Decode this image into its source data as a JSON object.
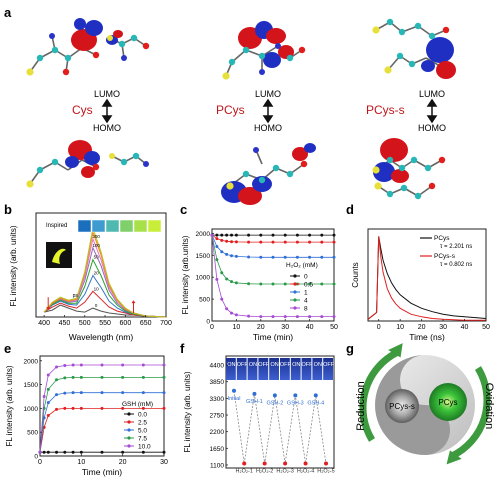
{
  "figure": {
    "panels": {
      "a": "a",
      "b": "b",
      "c": "c",
      "d": "d",
      "e": "e",
      "f": "f",
      "g": "g"
    }
  },
  "panel_a": {
    "columns": [
      {
        "name": "Cys",
        "lumo": "LUMO",
        "homo": "HOMO"
      },
      {
        "name": "PCys",
        "lumo": "LUMO",
        "homo": "HOMO"
      },
      {
        "name": "PCys-s",
        "lumo": "LUMO",
        "homo": "HOMO"
      }
    ],
    "colors": {
      "name": "#c0161b",
      "lobe_red": "#d4141b",
      "lobe_blue": "#1f2fc2",
      "carbon": "#27b7b7",
      "sulfur": "#e8e03a",
      "oxygen": "#e21d1d",
      "nitrogen": "#2a34c9",
      "hydrogen": "#e8e8e8"
    }
  },
  "chart_data": [
    {
      "panel": "b",
      "type": "line",
      "xlabel": "Wavelength (nm)",
      "ylabel": "FL intensity (arb. units)",
      "xticks": [
        "400",
        "450",
        "500",
        "550",
        "600",
        "650",
        "700"
      ],
      "xlim": [
        380,
        700
      ],
      "annotations": [
        "Inspired",
        "0",
        "10",
        "20",
        "50",
        "100",
        "200",
        "300",
        "400",
        "ps"
      ],
      "series": [
        {
          "name": "0",
          "color": "#555555",
          "x": [
            400,
            420,
            440,
            460,
            480,
            500,
            520,
            540,
            560,
            580,
            600,
            620,
            650,
            700
          ],
          "y": [
            0.05,
            0.07,
            0.12,
            0.09,
            0.06,
            0.05,
            0.09,
            0.06,
            0.04,
            0.03,
            0.02,
            0.02,
            0.01,
            0.0
          ]
        },
        {
          "name": "10",
          "color": "#d62728",
          "x": [
            400,
            420,
            440,
            460,
            480,
            500,
            520,
            540,
            560,
            580,
            600,
            620,
            650,
            700
          ],
          "y": [
            0.05,
            0.1,
            0.14,
            0.11,
            0.09,
            0.15,
            0.26,
            0.18,
            0.1,
            0.06,
            0.04,
            0.02,
            0.01,
            0.0
          ]
        },
        {
          "name": "20",
          "color": "#2f77c9",
          "x": [
            400,
            420,
            440,
            460,
            480,
            500,
            520,
            540,
            560,
            580,
            600,
            620,
            650,
            700
          ],
          "y": [
            0.05,
            0.12,
            0.16,
            0.13,
            0.12,
            0.23,
            0.42,
            0.3,
            0.16,
            0.09,
            0.05,
            0.03,
            0.01,
            0.0
          ]
        },
        {
          "name": "50",
          "color": "#2ca02c",
          "x": [
            400,
            420,
            440,
            460,
            480,
            500,
            520,
            540,
            560,
            580,
            600,
            620,
            650,
            700
          ],
          "y": [
            0.05,
            0.13,
            0.17,
            0.14,
            0.14,
            0.31,
            0.58,
            0.42,
            0.22,
            0.12,
            0.06,
            0.03,
            0.01,
            0.0
          ]
        },
        {
          "name": "100",
          "color": "#9467bd",
          "x": [
            400,
            420,
            440,
            460,
            480,
            500,
            520,
            540,
            560,
            580,
            600,
            620,
            650,
            700
          ],
          "y": [
            0.05,
            0.14,
            0.18,
            0.15,
            0.16,
            0.37,
            0.7,
            0.52,
            0.27,
            0.14,
            0.07,
            0.04,
            0.01,
            0.0
          ]
        },
        {
          "name": "200",
          "color": "#e377c2",
          "x": [
            400,
            420,
            440,
            460,
            480,
            500,
            520,
            540,
            560,
            580,
            600,
            620,
            650,
            700
          ],
          "y": [
            0.05,
            0.14,
            0.19,
            0.16,
            0.17,
            0.41,
            0.79,
            0.58,
            0.3,
            0.16,
            0.08,
            0.04,
            0.01,
            0.0
          ]
        },
        {
          "name": "300",
          "color": "#ff7f0e",
          "x": [
            400,
            420,
            440,
            460,
            480,
            500,
            520,
            540,
            560,
            580,
            600,
            620,
            650,
            700
          ],
          "y": [
            0.05,
            0.14,
            0.19,
            0.16,
            0.18,
            0.44,
            0.86,
            0.63,
            0.32,
            0.17,
            0.08,
            0.04,
            0.01,
            0.0
          ]
        },
        {
          "name": "400",
          "color": "#b5c227",
          "x": [
            400,
            420,
            440,
            460,
            480,
            500,
            520,
            540,
            560,
            580,
            600,
            620,
            650,
            700
          ],
          "y": [
            0.05,
            0.15,
            0.2,
            0.17,
            0.19,
            0.46,
            0.9,
            0.66,
            0.34,
            0.18,
            0.09,
            0.04,
            0.01,
            0.0
          ]
        }
      ],
      "inset_swatches": [
        "#1a6fbd",
        "#3d9bd0",
        "#4fb8b0",
        "#7fcf6a",
        "#a8e04a",
        "#c8ee3a"
      ]
    },
    {
      "panel": "c",
      "type": "line",
      "xlabel": "Time (min)",
      "ylabel": "FL intensity (arb.units)",
      "xticks": [
        "0",
        "10",
        "20",
        "30",
        "40",
        "50"
      ],
      "yticks": [
        "0",
        "500",
        "1000",
        "1500",
        "2000"
      ],
      "xlim": [
        0,
        50
      ],
      "ylim": [
        0,
        2100
      ],
      "legend_title": "H₂O₂ (mM)",
      "series": [
        {
          "name": "0",
          "color": "#111111",
          "x": [
            0,
            2,
            4,
            6,
            8,
            10,
            15,
            20,
            25,
            30,
            35,
            40,
            45,
            50
          ],
          "y": [
            1960,
            1960,
            1960,
            1960,
            1960,
            1960,
            1960,
            1960,
            1960,
            1960,
            1960,
            1960,
            1960,
            1960
          ]
        },
        {
          "name": "0.5",
          "color": "#e02020",
          "x": [
            0,
            2,
            4,
            6,
            8,
            10,
            15,
            20,
            25,
            30,
            35,
            40,
            45,
            50
          ],
          "y": [
            1960,
            1880,
            1840,
            1820,
            1810,
            1805,
            1800,
            1800,
            1800,
            1800,
            1800,
            1800,
            1800,
            1800
          ]
        },
        {
          "name": "1",
          "color": "#2f6fd6",
          "x": [
            0,
            2,
            4,
            6,
            8,
            10,
            15,
            20,
            25,
            30,
            35,
            40,
            45,
            50
          ],
          "y": [
            1960,
            1700,
            1580,
            1520,
            1490,
            1475,
            1460,
            1455,
            1455,
            1455,
            1455,
            1455,
            1455,
            1455
          ]
        },
        {
          "name": "4",
          "color": "#2a9a4a",
          "x": [
            0,
            2,
            4,
            6,
            8,
            10,
            15,
            20,
            25,
            30,
            35,
            40,
            45,
            50
          ],
          "y": [
            1960,
            1400,
            1100,
            960,
            900,
            870,
            850,
            845,
            845,
            845,
            845,
            845,
            845,
            845
          ]
        },
        {
          "name": "8",
          "color": "#a64bd4",
          "x": [
            0,
            2,
            4,
            6,
            8,
            10,
            15,
            20,
            25,
            30,
            35,
            40,
            45,
            50
          ],
          "y": [
            1960,
            950,
            500,
            280,
            180,
            140,
            110,
            100,
            100,
            100,
            100,
            100,
            100,
            100
          ]
        }
      ]
    },
    {
      "panel": "d",
      "type": "line",
      "xlabel": "Time (ns)",
      "ylabel": "Counts",
      "xticks": [
        "0",
        "10",
        "20",
        "30",
        "40",
        "50"
      ],
      "xlim": [
        -5,
        50
      ],
      "series": [
        {
          "name": "PCys",
          "color": "#111111",
          "tau": "τ = 2.201 ns",
          "x": [
            -5,
            -1,
            0,
            1,
            2,
            4,
            6,
            8,
            10,
            15,
            20,
            25,
            30,
            35,
            40,
            45,
            50
          ],
          "y": [
            0.02,
            0.1,
            1.0,
            0.85,
            0.72,
            0.56,
            0.45,
            0.37,
            0.31,
            0.21,
            0.15,
            0.11,
            0.08,
            0.06,
            0.05,
            0.04,
            0.03
          ]
        },
        {
          "name": "PCys-s",
          "color": "#e02020",
          "tau": "τ = 0.802 ns",
          "x": [
            -5,
            -1,
            0,
            1,
            2,
            4,
            6,
            8,
            10,
            15,
            20,
            25,
            30,
            35,
            40,
            45,
            50
          ],
          "y": [
            0.02,
            0.1,
            1.0,
            0.75,
            0.58,
            0.38,
            0.27,
            0.2,
            0.15,
            0.08,
            0.05,
            0.03,
            0.02,
            0.015,
            0.01,
            0.01,
            0.01
          ]
        }
      ]
    },
    {
      "panel": "e",
      "type": "line",
      "xlabel": "Time (min)",
      "ylabel": "FL intensity (arb. units)",
      "xticks": [
        "0",
        "10",
        "20",
        "30"
      ],
      "yticks": [
        "0",
        "500",
        "1000",
        "1500",
        "2000"
      ],
      "xlim": [
        0,
        30
      ],
      "ylim": [
        0,
        2100
      ],
      "legend_title": "GSH (mM)",
      "series": [
        {
          "name": "0.0",
          "color": "#111111",
          "x": [
            0,
            1,
            2,
            4,
            6,
            8,
            10,
            15,
            20,
            25,
            30
          ],
          "y": [
            80,
            80,
            80,
            80,
            80,
            80,
            80,
            80,
            80,
            80,
            80
          ]
        },
        {
          "name": "2.5",
          "color": "#e02020",
          "x": [
            0,
            1,
            2,
            4,
            6,
            8,
            10,
            15,
            20,
            25,
            30
          ],
          "y": [
            80,
            600,
            850,
            980,
            1000,
            1000,
            1000,
            1000,
            1000,
            1000,
            1000
          ]
        },
        {
          "name": "5.0",
          "color": "#2f6fd6",
          "x": [
            0,
            1,
            2,
            4,
            6,
            8,
            10,
            15,
            20,
            25,
            30
          ],
          "y": [
            80,
            800,
            1120,
            1290,
            1320,
            1330,
            1330,
            1330,
            1330,
            1330,
            1330
          ]
        },
        {
          "name": "7.5",
          "color": "#2a9a4a",
          "x": [
            0,
            1,
            2,
            4,
            6,
            8,
            10,
            15,
            20,
            25,
            30
          ],
          "y": [
            80,
            1000,
            1400,
            1600,
            1640,
            1650,
            1650,
            1650,
            1650,
            1650,
            1650
          ]
        },
        {
          "name": "10.0",
          "color": "#a64bd4",
          "x": [
            0,
            1,
            2,
            4,
            6,
            8,
            10,
            15,
            20,
            25,
            30
          ],
          "y": [
            80,
            1250,
            1700,
            1870,
            1900,
            1910,
            1910,
            1910,
            1910,
            1910,
            1910
          ]
        }
      ]
    },
    {
      "panel": "f",
      "type": "line",
      "xlabel": "",
      "ylabel": "FL intensity (arb. units)",
      "yticks": [
        "1100",
        "1650",
        "2200",
        "2750",
        "3300",
        "3850",
        "4400"
      ],
      "ylim": [
        1000,
        4700
      ],
      "strip_labels": [
        "ON",
        "OFF",
        "ON",
        "OFF",
        "ON",
        "OFF",
        "ON",
        "OFF",
        "ON",
        "OFF"
      ],
      "point_labels": [
        "Initial",
        "H₂O₂-1",
        "GSH-1",
        "H₂O₂-2",
        "GSH-2",
        "H₂O₂-3",
        "GSH-3",
        "H₂O₂-4",
        "GSH-4",
        "H₂O₂-5"
      ],
      "values": [
        3550,
        1150,
        3450,
        1150,
        3400,
        1150,
        3400,
        1150,
        3400,
        1150
      ]
    }
  ],
  "panel_g": {
    "left": "PCys-s",
    "right": "PCys",
    "arrow_left": "Reduction",
    "arrow_right": "Oxidation",
    "colors": {
      "arrow": "#3e9a3e",
      "disc": "#d8d8d8",
      "dark": "#7a7a7a",
      "glow": "#2cb53a"
    }
  }
}
